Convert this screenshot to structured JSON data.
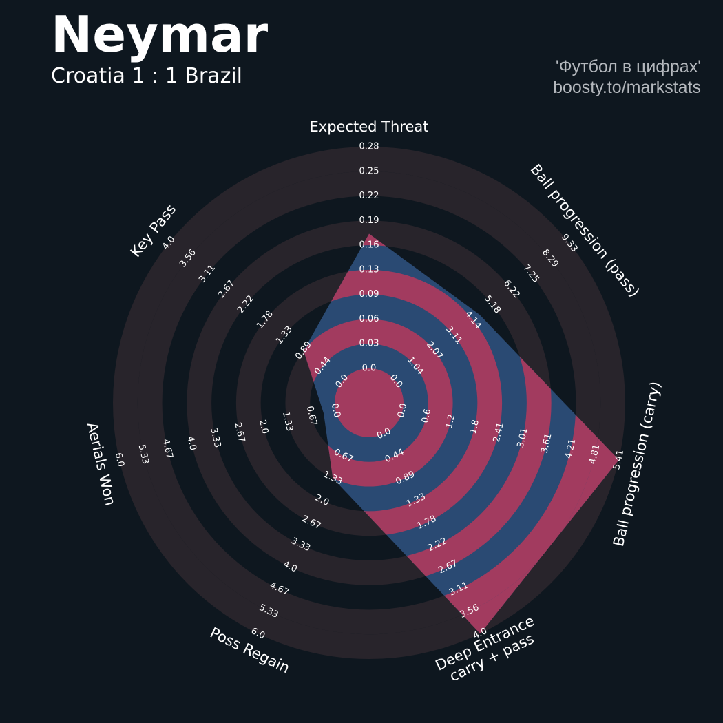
{
  "header": {
    "player_name": "Neymar",
    "match": "Croatia 1 : 1 Brazil",
    "credit_line1": "'Футбол в цифрах'",
    "credit_line2": "boosty.to/markstats"
  },
  "colors": {
    "background": "#0e171f",
    "ring_dark": "#28242b",
    "player_fill": "#2a4a73",
    "ring_highlight": "#a23b5f",
    "label_text": "#ffffff"
  },
  "chart_data": {
    "type": "radar",
    "title": "Neymar",
    "subtitle": "Croatia 1 : 1 Brazil",
    "params": [
      {
        "label": "Expected Threat",
        "ticks": [
          "0.0",
          "0.03",
          "0.06",
          "0.09",
          "0.13",
          "0.16",
          "0.19",
          "0.22",
          "0.25",
          "0.28"
        ],
        "min": 0.0,
        "max": 0.28,
        "value": 0.17
      },
      {
        "label": "Ball progression (pass)",
        "ticks": [
          "0.0",
          "1.04",
          "2.07",
          "3.11",
          "4.14",
          "5.18",
          "6.22",
          "7.25",
          "8.29",
          "9.33"
        ],
        "min": 0.0,
        "max": 9.33,
        "value": 4.5
      },
      {
        "label": "Ball progression (carry)",
        "ticks": [
          "0.0",
          "0.6",
          "1.2",
          "1.8",
          "2.41",
          "3.01",
          "3.61",
          "4.21",
          "4.81",
          "5.41"
        ],
        "min": 0.0,
        "max": 5.41,
        "value": 5.41
      },
      {
        "label": "Deep Entrance\ncarry + pass",
        "ticks": [
          "0.0",
          "0.44",
          "0.89",
          "1.33",
          "1.78",
          "2.22",
          "2.67",
          "3.11",
          "3.56",
          "4.0"
        ],
        "min": 0.0,
        "max": 4.0,
        "value": 4.0
      },
      {
        "label": "Poss Regain",
        "ticks": [
          "0.67",
          "1.33",
          "2.0",
          "2.67",
          "3.33",
          "4.0",
          "4.67",
          "5.33",
          "6.0"
        ],
        "min": 0.0,
        "max": 6.0,
        "value": 1.33
      },
      {
        "label": "Aerials Won",
        "ticks": [
          "0.0",
          "0.67",
          "1.33",
          "2.0",
          "2.67",
          "3.33",
          "4.0",
          "4.67",
          "5.33",
          "6.0"
        ],
        "min": 0.0,
        "max": 6.0,
        "value": 0.33
      },
      {
        "label": "Key Pass",
        "ticks": [
          "0.0",
          "0.44",
          "0.89",
          "1.33",
          "1.78",
          "2.22",
          "2.67",
          "3.11",
          "3.56",
          "4.0"
        ],
        "min": 0.0,
        "max": 4.0,
        "value": 0.89
      }
    ]
  }
}
